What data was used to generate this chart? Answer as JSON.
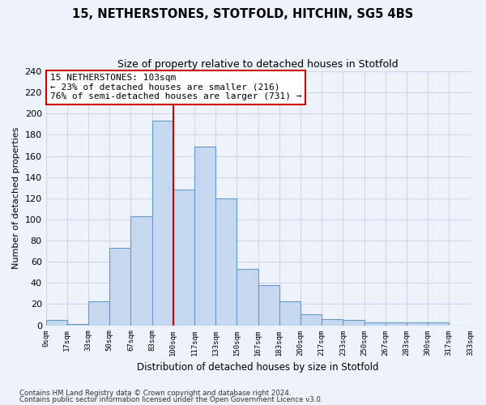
{
  "title": "15, NETHERSTONES, STOTFOLD, HITCHIN, SG5 4BS",
  "subtitle": "Size of property relative to detached houses in Stotfold",
  "xlabel": "Distribution of detached houses by size in Stotfold",
  "ylabel": "Number of detached properties",
  "bin_labels": [
    "0sqm",
    "17sqm",
    "33sqm",
    "50sqm",
    "67sqm",
    "83sqm",
    "100sqm",
    "117sqm",
    "133sqm",
    "150sqm",
    "167sqm",
    "183sqm",
    "200sqm",
    "217sqm",
    "233sqm",
    "250sqm",
    "267sqm",
    "283sqm",
    "300sqm",
    "317sqm",
    "333sqm"
  ],
  "bar_heights": [
    5,
    1,
    23,
    73,
    103,
    193,
    128,
    169,
    120,
    53,
    38,
    23,
    10,
    6,
    5,
    3,
    3,
    3,
    3,
    0
  ],
  "bar_color": "#c5d8f0",
  "bar_edge_color": "#6699cc",
  "vline_x": 6,
  "annotation_text": "15 NETHERSTONES: 103sqm\n← 23% of detached houses are smaller (216)\n76% of semi-detached houses are larger (731) →",
  "annotation_box_color": "#ffffff",
  "annotation_box_edge_color": "#cc0000",
  "vline_color": "#cc0000",
  "grid_color": "#d0d8e8",
  "ylim": [
    0,
    240
  ],
  "yticks": [
    0,
    20,
    40,
    60,
    80,
    100,
    120,
    140,
    160,
    180,
    200,
    220,
    240
  ],
  "footnote1": "Contains HM Land Registry data © Crown copyright and database right 2024.",
  "footnote2": "Contains public sector information licensed under the Open Government Licence v3.0.",
  "bg_color": "#eef2fa"
}
